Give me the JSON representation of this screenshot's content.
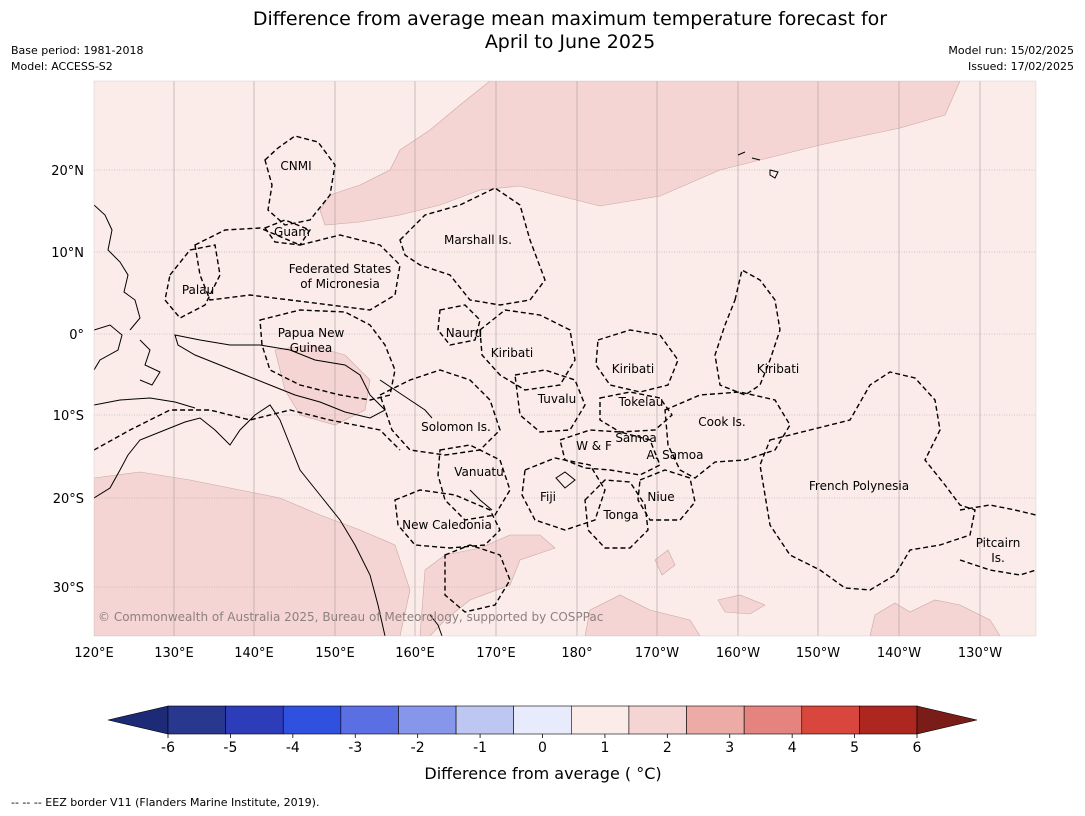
{
  "header": {
    "title_line1": "Difference from average mean maximum temperature forecast for",
    "title_line2": "April to June 2025",
    "base_period": "Base period: 1981-2018",
    "model": "Model: ACCESS-S2",
    "model_run": "Model run: 15/02/2025",
    "issued": "Issued: 17/02/2025"
  },
  "map": {
    "lat_labels": [
      "20°N",
      "10°N",
      "0°",
      "10°S",
      "20°S",
      "30°S"
    ],
    "lon_labels": [
      "120°E",
      "130°E",
      "140°E",
      "150°E",
      "160°E",
      "170°E",
      "180°",
      "170°W",
      "160°W",
      "150°W",
      "140°W",
      "130°W"
    ],
    "region_labels": {
      "cnmi": "CNMI",
      "guam": "Guam",
      "marshall": "Marshall Is.",
      "fsm_line1": "Federated States",
      "fsm_line2": "of Micronesia",
      "palau": "Palau",
      "png_line1": "Papua New",
      "png_line2": "Guinea",
      "nauru": "Nauru",
      "kiribati_west": "Kiribati",
      "kiribati_central": "Kiribati",
      "kiribati_east": "Kiribati",
      "tuvalu": "Tuvalu",
      "tokelau": "Tokelau",
      "cook": "Cook Is.",
      "solomon": "Solomon Is.",
      "samoa": "Samoa",
      "wf": "W & F",
      "asamoa": "A. Samoa",
      "vanuatu": "Vanuatu",
      "fiji": "Fiji",
      "niue": "Niue",
      "tonga": "Tonga",
      "french_polynesia": "French Polynesia",
      "new_caledonia": "New Caledonia",
      "pitcairn_line1": "Pitcairn",
      "pitcairn_line2": "Is."
    },
    "copyright": "© Commonwealth of Australia 2025, Bureau of Meteorology, supported by COSPPac",
    "colors": {
      "light_warm": "#fbebe9",
      "warm": "#f5d5d3"
    }
  },
  "colorbar": {
    "label": "Difference from average ( °C)",
    "ticks": [
      "-6",
      "-5",
      "-4",
      "-3",
      "-2",
      "-1",
      "0",
      "1",
      "2",
      "3",
      "4",
      "5",
      "6"
    ],
    "colors": [
      "#29388f",
      "#2d3cb8",
      "#3050e0",
      "#5a6fe3",
      "#8696eb",
      "#bec6f2",
      "#e8ebfb",
      "#fbebe9",
      "#f5d5d3",
      "#edaba6",
      "#e5837e",
      "#d9463d",
      "#ad2720"
    ],
    "left_extend_color": "#1c2a78",
    "right_extend_color": "#7a1c18"
  },
  "footer": {
    "legend_note": "-- -- -- EEZ border V11 (Flanders Marine Institute, 2019)."
  }
}
